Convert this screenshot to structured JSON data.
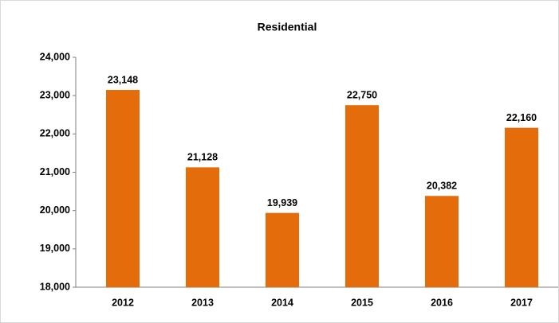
{
  "chart_data": {
    "type": "bar",
    "title": "Residential",
    "categories": [
      "2012",
      "2013",
      "2014",
      "2015",
      "2016",
      "2017"
    ],
    "values": [
      23148,
      21128,
      19939,
      22750,
      20382,
      22160
    ],
    "value_labels": [
      "23,148",
      "21,128",
      "19,939",
      "22,750",
      "20,382",
      "22,160"
    ],
    "color": "#e46c0a",
    "ylim": [
      18000,
      24000
    ],
    "yticks": [
      {
        "value": 18000,
        "label": "18,000"
      },
      {
        "value": 19000,
        "label": "19,000"
      },
      {
        "value": 20000,
        "label": "20,000"
      },
      {
        "value": 21000,
        "label": "21,000"
      },
      {
        "value": 22000,
        "label": "22,000"
      },
      {
        "value": 23000,
        "label": "23,000"
      },
      {
        "value": 24000,
        "label": "24,000"
      }
    ],
    "grid": false
  }
}
